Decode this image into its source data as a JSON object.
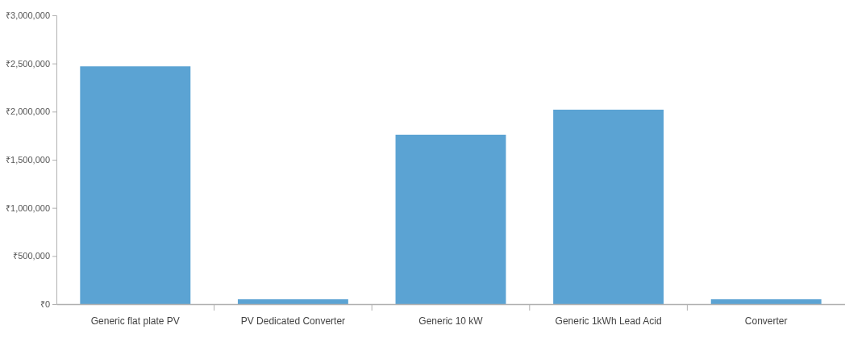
{
  "chart_data": {
    "type": "bar",
    "categories": [
      "Generic flat plate PV",
      "PV Dedicated Converter",
      "Generic 10 kW",
      "Generic 1kWh Lead Acid",
      "Converter"
    ],
    "values": [
      2470000,
      50000,
      1760000,
      2020000,
      50000
    ],
    "color": "#5ba3d3",
    "ylim": [
      0,
      3000000
    ],
    "yticks": [
      {
        "value": 0,
        "label": "₹0"
      },
      {
        "value": 500000,
        "label": "₹500,000"
      },
      {
        "value": 1000000,
        "label": "₹1,000,000"
      },
      {
        "value": 1500000,
        "label": "₹1,500,000"
      },
      {
        "value": 2000000,
        "label": "₹2,000,000"
      },
      {
        "value": 2500000,
        "label": "₹2,500,000"
      },
      {
        "value": 3000000,
        "label": "₹3,000,000"
      }
    ],
    "grid": false
  }
}
